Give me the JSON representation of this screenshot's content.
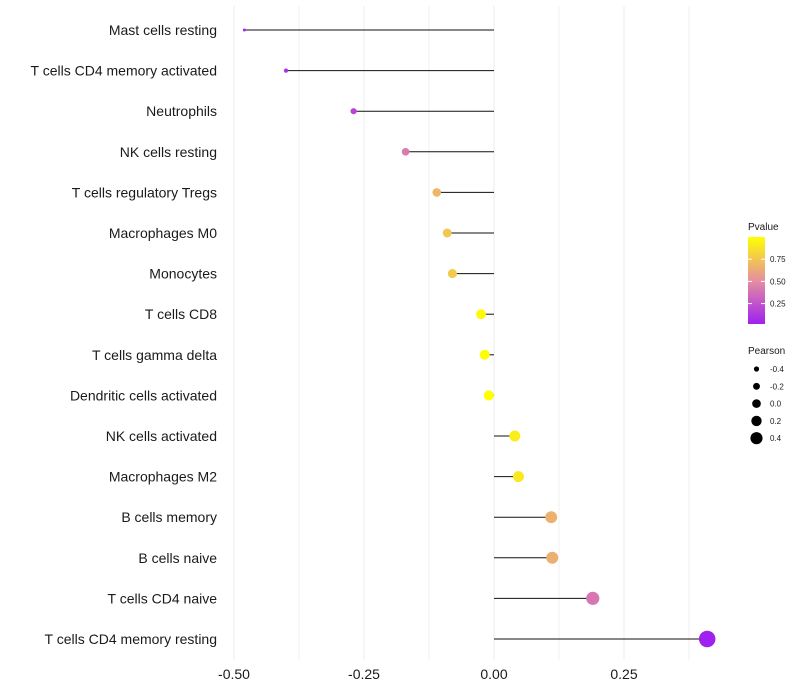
{
  "chart_data": {
    "type": "lollipop",
    "categories": [
      "Mast cells resting",
      "T cells CD4 memory activated",
      "Neutrophils",
      "NK cells resting",
      "T cells regulatory  Tregs ",
      "Macrophages M0",
      "Monocytes",
      "T cells CD8",
      "T cells gamma delta",
      "Dendritic cells activated",
      "NK cells activated",
      "Macrophages M2",
      "B cells memory",
      "B cells naive",
      "T cells CD4 naive",
      "T cells CD4 memory resting"
    ],
    "pearson": [
      -0.48,
      -0.4,
      -0.27,
      -0.17,
      -0.11,
      -0.09,
      -0.08,
      -0.025,
      -0.018,
      -0.01,
      0.04,
      0.047,
      0.11,
      0.112,
      0.19,
      0.41
    ],
    "pvalue": [
      0.04,
      0.1,
      0.18,
      0.42,
      0.68,
      0.75,
      0.77,
      0.98,
      0.99,
      1.0,
      0.92,
      0.9,
      0.66,
      0.65,
      0.4,
      0.02
    ],
    "xlim": [
      -0.5,
      0.43
    ],
    "x_ticks": [
      -0.5,
      -0.25,
      0.0,
      0.25
    ],
    "x_tick_labels": [
      "-0.50",
      "-0.25",
      "0.00",
      "0.25"
    ],
    "legend_color": {
      "title": "Pvalue",
      "ticks": [
        0.25,
        0.5,
        0.75
      ],
      "tick_labels": [
        "0.25",
        "0.50",
        "0.75"
      ],
      "range": [
        0.02,
        1.0
      ],
      "low_color": "#a020f0",
      "mid_color": "#e58fa0",
      "high_color": "#ffff00"
    },
    "legend_size": {
      "title": "Pearson",
      "values": [
        -0.4,
        -0.2,
        0.0,
        0.2,
        0.4
      ],
      "labels": [
        "-0.4",
        "-0.2",
        "0.0",
        "0.2",
        "0.4"
      ]
    },
    "grid": true
  }
}
